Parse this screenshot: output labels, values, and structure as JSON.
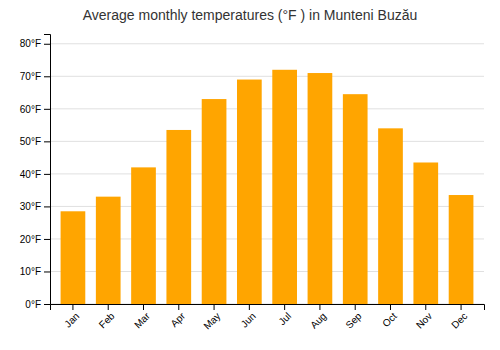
{
  "chart_data": {
    "type": "bar",
    "title": "Average monthly temperatures (°F ) in Munteni Buzău",
    "categories": [
      "Jan",
      "Feb",
      "Mar",
      "Apr",
      "May",
      "Jun",
      "Jul",
      "Aug",
      "Sep",
      "Oct",
      "Nov",
      "Dec"
    ],
    "values": [
      28.5,
      33.0,
      42.0,
      53.5,
      63.0,
      69.0,
      72.0,
      71.0,
      64.5,
      54.0,
      43.5,
      33.5
    ],
    "color": "#FFA500",
    "ylim": [
      0,
      83
    ],
    "yticks": [
      {
        "value": 0,
        "label": "0°F"
      },
      {
        "value": 10,
        "label": "10°F"
      },
      {
        "value": 20,
        "label": "20°F"
      },
      {
        "value": 30,
        "label": "30°F"
      },
      {
        "value": 40,
        "label": "40°F"
      },
      {
        "value": 50,
        "label": "50°F"
      },
      {
        "value": 60,
        "label": "60°F"
      },
      {
        "value": 70,
        "label": "70°F"
      },
      {
        "value": 80,
        "label": "80°F"
      }
    ],
    "grid": true
  }
}
